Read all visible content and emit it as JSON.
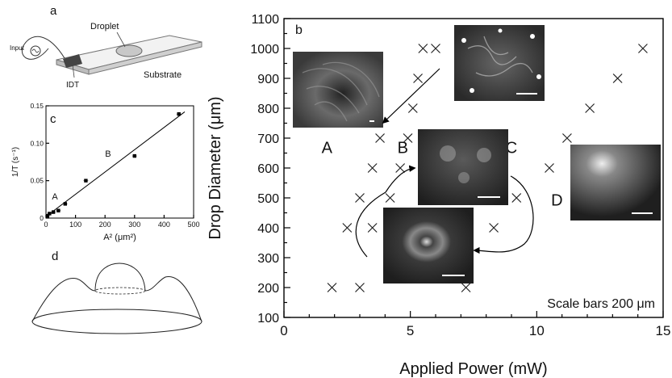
{
  "panel_a": {
    "letter": "a",
    "labels": {
      "droplet": "Droplet",
      "input": "Input",
      "idt": "IDT",
      "substrate": "Substrate"
    }
  },
  "panel_d": {
    "letter": "d"
  },
  "chart_data": [
    {
      "panel": "c",
      "type": "scatter",
      "title": "",
      "xlabel": "A² (μm²)",
      "ylabel": "1/T (s⁻¹)",
      "xlim": [
        0,
        500
      ],
      "ylim": [
        0,
        0.15
      ],
      "x_ticks": [
        0,
        100,
        200,
        300,
        400,
        500
      ],
      "y_ticks": [
        0,
        0.05,
        0.1,
        0.15
      ],
      "y_tick_labels": [
        "0",
        "0.05",
        "0.10",
        "0.15"
      ],
      "x": [
        5,
        12,
        25,
        42,
        65,
        135,
        300,
        450
      ],
      "y": [
        0.003,
        0.006,
        0.008,
        0.01,
        0.019,
        0.05,
        0.083,
        0.139
      ],
      "fit_line": {
        "x": [
          0,
          470
        ],
        "y": [
          0.002,
          0.142
        ]
      },
      "annotations": [
        {
          "text": "A",
          "x": 20,
          "y": 0.025
        },
        {
          "text": "B",
          "x": 200,
          "y": 0.082
        }
      ],
      "panel_letter": "c"
    },
    {
      "panel": "b",
      "type": "scatter",
      "title": "",
      "xlabel": "Applied Power (mW)",
      "ylabel": "Drop Diameter (μm)",
      "xlim": [
        0,
        15
      ],
      "ylim": [
        100,
        1100
      ],
      "x_ticks": [
        0,
        5,
        10,
        15
      ],
      "y_ticks": [
        100,
        200,
        300,
        400,
        500,
        600,
        700,
        800,
        900,
        1000,
        1100
      ],
      "marker": "x",
      "x": [
        1.9,
        3.0,
        7.2,
        2.5,
        3.5,
        8.3,
        3.0,
        4.2,
        9.2,
        3.5,
        4.6,
        10.5,
        3.8,
        4.9,
        11.2,
        5.1,
        12.1,
        5.3,
        13.2,
        5.5,
        6.0,
        14.2
      ],
      "y": [
        200,
        200,
        200,
        400,
        400,
        400,
        500,
        500,
        500,
        600,
        600,
        600,
        700,
        700,
        700,
        800,
        800,
        900,
        900,
        1000,
        1000,
        1000
      ],
      "region_labels": [
        {
          "text": "A",
          "x": 1.7,
          "y": 650
        },
        {
          "text": "B",
          "x": 4.7,
          "y": 650
        },
        {
          "text": "C",
          "x": 9.0,
          "y": 650
        },
        {
          "text": "D",
          "x": 10.8,
          "y": 475
        }
      ],
      "note": "Scale bars 200 μm",
      "panel_letter": "b"
    }
  ]
}
